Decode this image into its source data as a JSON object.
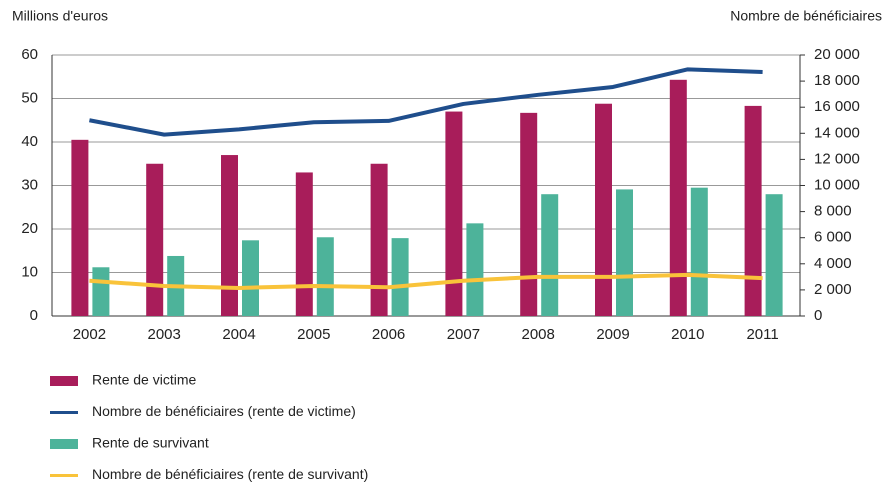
{
  "chart_data": {
    "type": "bar-line",
    "ylabel": "Millions d'euros",
    "y2label": "Nombre de bénéficiaires",
    "categories": [
      "2002",
      "2003",
      "2004",
      "2005",
      "2006",
      "2007",
      "2008",
      "2009",
      "2010",
      "2011"
    ],
    "series": [
      {
        "name": "Rente de victime",
        "type": "bar",
        "color": "#a81d5a",
        "values": [
          40.5,
          35,
          37,
          33,
          35,
          47,
          46.7,
          48.8,
          54.3,
          48.3
        ]
      },
      {
        "name": "Nombre de bénéficiaires (rente de victime)",
        "type": "line",
        "axis": "y2",
        "color": "#1f4e8c",
        "values": [
          15000,
          13900,
          14300,
          14850,
          14950,
          16250,
          16950,
          17550,
          18900,
          18700
        ]
      },
      {
        "name": "Rente de survivant",
        "type": "bar",
        "color": "#4db39a",
        "values": [
          11.2,
          13.8,
          17.4,
          18.1,
          17.9,
          21.3,
          28,
          29.1,
          29.5,
          28
        ]
      },
      {
        "name": "Nombre de bénéficiaires (rente de survivant)",
        "type": "line",
        "axis": "y2",
        "color": "#f9c33a",
        "values": [
          2700,
          2300,
          2150,
          2300,
          2200,
          2700,
          3000,
          3000,
          3150,
          2900
        ]
      }
    ],
    "ylim": [
      0,
      60
    ],
    "yticks": [
      0,
      10,
      20,
      30,
      40,
      50,
      60
    ],
    "y2lim": [
      0,
      20000
    ],
    "y2ticks": [
      0,
      {
        "value": 2000,
        "label": "2 000"
      },
      {
        "value": 4000,
        "label": "4 000"
      },
      {
        "value": 6000,
        "label": "6 000"
      },
      {
        "value": 8000,
        "label": "8 000"
      },
      {
        "value": 10000,
        "label": "10 000"
      },
      {
        "value": 12000,
        "label": "12 000"
      },
      {
        "value": 14000,
        "label": "14 000"
      },
      {
        "value": 16000,
        "label": "16 000"
      },
      {
        "value": 18000,
        "label": "18 000"
      },
      {
        "value": 20000,
        "label": "20 000"
      }
    ],
    "grid": true
  }
}
